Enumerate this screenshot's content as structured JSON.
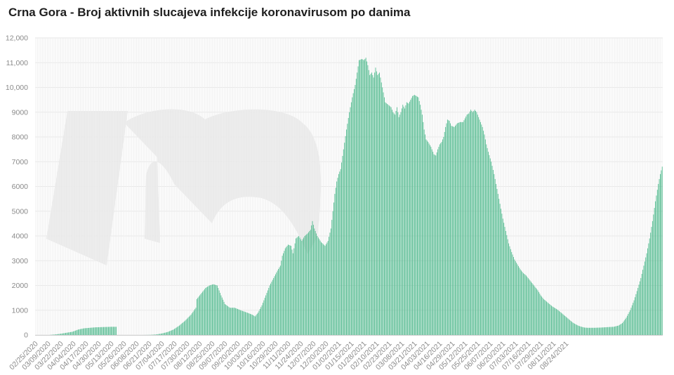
{
  "chart_data": {
    "type": "bar",
    "title": "Crna Gora - Broj aktivnih slucajeva infekcije koronavirusom po danima",
    "xlabel": "",
    "ylabel": "",
    "ylim": [
      0,
      12000
    ],
    "y_ticks": [
      "0",
      "1000",
      "2000",
      "3000",
      "4000",
      "5000",
      "6000",
      "7000",
      "8000",
      "9000",
      "10,000",
      "11,000",
      "12,000"
    ],
    "y_tick_values": [
      0,
      1000,
      2000,
      3000,
      4000,
      5000,
      6000,
      7000,
      8000,
      9000,
      10000,
      11000,
      12000
    ],
    "x_tick_labels": [
      "02/25/2020",
      "03/09/2020",
      "03/22/2020",
      "04/04/2020",
      "04/17/2020",
      "04/30/2020",
      "05/13/2020",
      "05/26/2020",
      "06/08/2020",
      "06/21/2020",
      "07/04/2020",
      "07/17/2020",
      "07/30/2020",
      "08/12/2020",
      "08/25/2020",
      "09/07/2020",
      "09/20/2020",
      "10/03/2020",
      "10/16/2020",
      "10/29/2020",
      "11/11/2020",
      "11/24/2020",
      "12/07/2020",
      "12/20/2020",
      "01/02/2021",
      "01/15/2021",
      "01/28/2021",
      "02/10/2021",
      "02/23/2021",
      "03/08/2021",
      "03/21/2021",
      "04/03/2021",
      "04/16/2021",
      "04/29/2021",
      "05/12/2021",
      "05/25/2021",
      "06/07/2021",
      "06/20/2021",
      "07/03/2021",
      "07/16/2021",
      "07/29/2021",
      "08/11/2021",
      "08/24/2021"
    ],
    "day_step": 13,
    "series_points": [
      [
        0,
        0
      ],
      [
        14,
        0
      ],
      [
        20,
        20
      ],
      [
        26,
        50
      ],
      [
        32,
        90
      ],
      [
        38,
        130
      ],
      [
        44,
        220
      ],
      [
        50,
        270
      ],
      [
        56,
        290
      ],
      [
        62,
        310
      ],
      [
        70,
        320
      ],
      [
        78,
        330
      ],
      [
        83,
        330
      ],
      [
        84,
        0
      ],
      [
        110,
        0
      ],
      [
        118,
        5
      ],
      [
        124,
        20
      ],
      [
        130,
        60
      ],
      [
        136,
        120
      ],
      [
        142,
        220
      ],
      [
        148,
        380
      ],
      [
        154,
        580
      ],
      [
        160,
        820
      ],
      [
        165,
        1100
      ],
      [
        166,
        1450
      ],
      [
        170,
        1650
      ],
      [
        175,
        1900
      ],
      [
        179,
        2000
      ],
      [
        183,
        2050
      ],
      [
        187,
        2000
      ],
      [
        191,
        1600
      ],
      [
        195,
        1250
      ],
      [
        200,
        1100
      ],
      [
        205,
        1100
      ],
      [
        211,
        1000
      ],
      [
        218,
        900
      ],
      [
        223,
        820
      ],
      [
        226,
        750
      ],
      [
        229,
        900
      ],
      [
        233,
        1200
      ],
      [
        237,
        1600
      ],
      [
        241,
        2000
      ],
      [
        245,
        2300
      ],
      [
        249,
        2600
      ],
      [
        252,
        2800
      ],
      [
        254,
        3200
      ],
      [
        257,
        3500
      ],
      [
        260,
        3650
      ],
      [
        263,
        3600
      ],
      [
        265,
        3300
      ],
      [
        268,
        3900
      ],
      [
        271,
        4000
      ],
      [
        274,
        3800
      ],
      [
        277,
        4000
      ],
      [
        280,
        4100
      ],
      [
        283,
        4250
      ],
      [
        285,
        4600
      ],
      [
        287,
        4300
      ],
      [
        290,
        4000
      ],
      [
        294,
        3750
      ],
      [
        298,
        3600
      ],
      [
        301,
        3800
      ],
      [
        304,
        4300
      ],
      [
        306,
        5000
      ],
      [
        308,
        5700
      ],
      [
        310,
        6200
      ],
      [
        312,
        6500
      ],
      [
        314,
        6700
      ],
      [
        317,
        7500
      ],
      [
        320,
        8300
      ],
      [
        323,
        9000
      ],
      [
        326,
        9600
      ],
      [
        329,
        10100
      ],
      [
        331,
        10600
      ],
      [
        333,
        11100
      ],
      [
        336,
        11150
      ],
      [
        338,
        11100
      ],
      [
        340,
        11200
      ],
      [
        342,
        10900
      ],
      [
        344,
        10500
      ],
      [
        346,
        10600
      ],
      [
        348,
        10400
      ],
      [
        350,
        10800
      ],
      [
        352,
        10500
      ],
      [
        354,
        10600
      ],
      [
        356,
        10200
      ],
      [
        358,
        9800
      ],
      [
        360,
        9400
      ],
      [
        363,
        9300
      ],
      [
        366,
        9200
      ],
      [
        368,
        9000
      ],
      [
        370,
        8900
      ],
      [
        372,
        9200
      ],
      [
        374,
        8800
      ],
      [
        376,
        9000
      ],
      [
        378,
        9300
      ],
      [
        380,
        9150
      ],
      [
        382,
        9400
      ],
      [
        384,
        9350
      ],
      [
        386,
        9500
      ],
      [
        388,
        9650
      ],
      [
        390,
        9700
      ],
      [
        392,
        9650
      ],
      [
        394,
        9600
      ],
      [
        396,
        9300
      ],
      [
        398,
        8900
      ],
      [
        400,
        8300
      ],
      [
        402,
        7900
      ],
      [
        404,
        7800
      ],
      [
        407,
        7600
      ],
      [
        410,
        7300
      ],
      [
        412,
        7250
      ],
      [
        414,
        7500
      ],
      [
        416,
        7700
      ],
      [
        418,
        7800
      ],
      [
        420,
        8000
      ],
      [
        422,
        8400
      ],
      [
        424,
        8700
      ],
      [
        426,
        8650
      ],
      [
        428,
        8450
      ],
      [
        431,
        8400
      ],
      [
        434,
        8550
      ],
      [
        437,
        8600
      ],
      [
        440,
        8600
      ],
      [
        442,
        8750
      ],
      [
        444,
        8900
      ],
      [
        446,
        8950
      ],
      [
        448,
        9100
      ],
      [
        450,
        9000
      ],
      [
        452,
        9100
      ],
      [
        454,
        9000
      ],
      [
        456,
        8800
      ],
      [
        458,
        8600
      ],
      [
        460,
        8400
      ],
      [
        462,
        8100
      ],
      [
        464,
        7700
      ],
      [
        466,
        7400
      ],
      [
        469,
        7000
      ],
      [
        472,
        6500
      ],
      [
        475,
        5900
      ],
      [
        478,
        5300
      ],
      [
        481,
        4700
      ],
      [
        484,
        4200
      ],
      [
        487,
        3700
      ],
      [
        490,
        3350
      ],
      [
        493,
        3050
      ],
      [
        496,
        2850
      ],
      [
        499,
        2650
      ],
      [
        502,
        2500
      ],
      [
        505,
        2400
      ],
      [
        508,
        2250
      ],
      [
        511,
        2100
      ],
      [
        514,
        1950
      ],
      [
        517,
        1800
      ],
      [
        520,
        1600
      ],
      [
        523,
        1450
      ],
      [
        526,
        1350
      ],
      [
        529,
        1250
      ],
      [
        532,
        1150
      ],
      [
        535,
        1080
      ],
      [
        538,
        1000
      ],
      [
        541,
        900
      ],
      [
        544,
        800
      ],
      [
        547,
        700
      ],
      [
        550,
        600
      ],
      [
        553,
        500
      ],
      [
        556,
        430
      ],
      [
        559,
        370
      ],
      [
        562,
        330
      ],
      [
        565,
        300
      ],
      [
        568,
        290
      ],
      [
        575,
        290
      ],
      [
        582,
        300
      ],
      [
        590,
        320
      ],
      [
        595,
        330
      ],
      [
        600,
        380
      ],
      [
        604,
        480
      ],
      [
        608,
        700
      ],
      [
        612,
        1000
      ],
      [
        616,
        1400
      ],
      [
        620,
        1900
      ],
      [
        623,
        2300
      ],
      [
        626,
        2800
      ],
      [
        629,
        3300
      ],
      [
        632,
        3900
      ],
      [
        635,
        4600
      ],
      [
        638,
        5400
      ],
      [
        641,
        6100
      ],
      [
        643,
        6500
      ],
      [
        645,
        6800
      ]
    ]
  }
}
